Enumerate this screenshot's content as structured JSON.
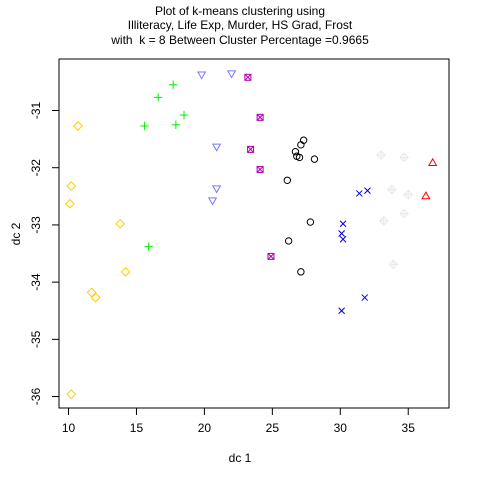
{
  "chart_data": {
    "type": "scatter",
    "title": [
      "Plot of k-means clustering using",
      "Illiteracy, Life Exp, Murder, HS Grad, Frost",
      "with  k = 8 Between Cluster Percentage =0.9665"
    ],
    "xlabel": "dc 1",
    "ylabel": "dc 2",
    "xlim": [
      9.3,
      38.0
    ],
    "ylim": [
      -36.2,
      -30.1
    ],
    "xticks": [
      10,
      15,
      20,
      25,
      30,
      35
    ],
    "yticks": [
      -36,
      -35,
      -34,
      -33,
      -32,
      -31
    ],
    "grid": false,
    "legend": "none",
    "series": [
      {
        "marker": "circle",
        "color": "#000000",
        "points": [
          [
            26.7,
            -31.72
          ],
          [
            27.1,
            -31.6
          ],
          [
            27.3,
            -31.52
          ],
          [
            26.8,
            -31.8
          ],
          [
            27.0,
            -31.82
          ],
          [
            28.1,
            -31.85
          ],
          [
            26.1,
            -32.22
          ],
          [
            27.8,
            -32.95
          ],
          [
            26.2,
            -33.28
          ],
          [
            27.1,
            -33.82
          ]
        ]
      },
      {
        "marker": "triangle-up",
        "color": "#ff0000",
        "points": [
          [
            36.8,
            -31.92
          ],
          [
            36.3,
            -32.5
          ]
        ]
      },
      {
        "marker": "plus",
        "color": "#00ee00",
        "points": [
          [
            17.7,
            -30.55
          ],
          [
            16.6,
            -30.77
          ],
          [
            15.6,
            -31.27
          ],
          [
            17.9,
            -31.25
          ],
          [
            18.5,
            -31.08
          ],
          [
            15.9,
            -33.38
          ]
        ]
      },
      {
        "marker": "x",
        "color": "#0000cc",
        "points": [
          [
            31.4,
            -32.45
          ],
          [
            32.0,
            -32.4
          ],
          [
            30.2,
            -32.98
          ],
          [
            30.1,
            -33.15
          ],
          [
            30.2,
            -33.25
          ],
          [
            31.8,
            -34.27
          ],
          [
            30.1,
            -34.5
          ]
        ]
      },
      {
        "marker": "diamond-cross",
        "color": "#e8e8e8",
        "points": [
          [
            33.0,
            -31.78
          ],
          [
            34.7,
            -31.82
          ],
          [
            33.8,
            -32.38
          ],
          [
            35.0,
            -32.47
          ],
          [
            33.2,
            -32.93
          ],
          [
            34.7,
            -32.8
          ],
          [
            33.9,
            -33.69
          ]
        ]
      },
      {
        "marker": "triangle-down",
        "color": "#7777ff",
        "points": [
          [
            19.8,
            -30.37
          ],
          [
            22.0,
            -30.35
          ],
          [
            20.9,
            -31.63
          ],
          [
            20.9,
            -32.36
          ],
          [
            20.6,
            -32.57
          ]
        ]
      },
      {
        "marker": "square-cross",
        "color": "#aa00aa",
        "points": [
          [
            23.2,
            -30.42
          ],
          [
            24.1,
            -31.12
          ],
          [
            23.4,
            -31.68
          ],
          [
            24.1,
            -32.03
          ],
          [
            24.9,
            -33.55
          ]
        ]
      },
      {
        "marker": "diamond",
        "color": "#ffcc00",
        "points": [
          [
            10.7,
            -31.27
          ],
          [
            10.2,
            -32.32
          ],
          [
            10.1,
            -32.63
          ],
          [
            13.8,
            -32.98
          ],
          [
            14.2,
            -33.82
          ],
          [
            11.7,
            -34.18
          ],
          [
            12.0,
            -34.27
          ],
          [
            10.2,
            -35.96
          ]
        ]
      }
    ]
  }
}
